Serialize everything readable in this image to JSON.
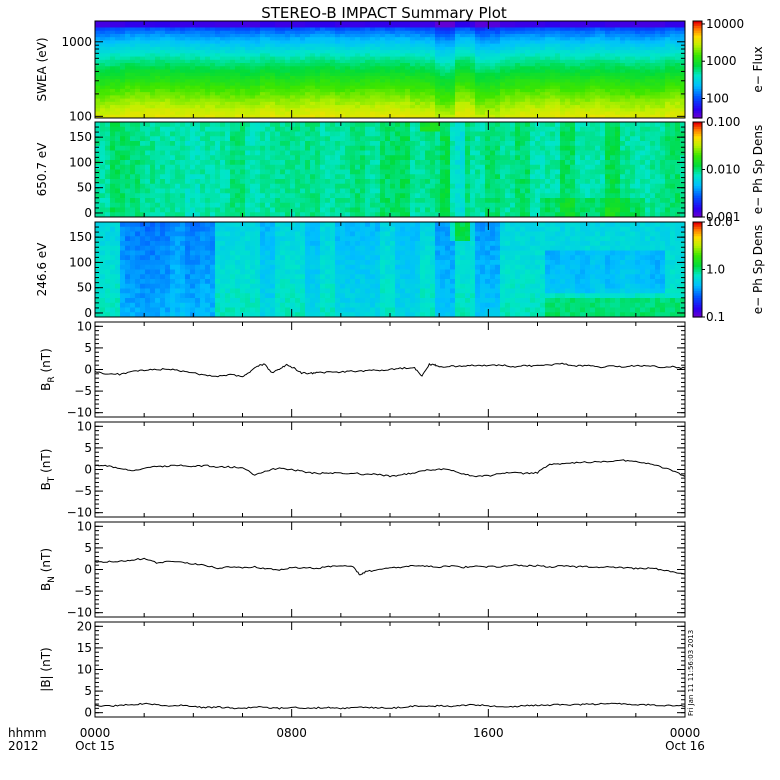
{
  "title": "STEREO-B IMPACT Summary Plot",
  "footer": {
    "axis_label_line1": "hhmm",
    "axis_label_line2": "2012",
    "timestamp": "Fri Jan 11 11:56:03 2013"
  },
  "colors": {
    "line": "#000000",
    "background": "#ffffff",
    "frame": "#000000"
  },
  "chart_data": [
    {
      "type": "heatmap",
      "name": "swea",
      "ylabel": "SWEA (eV)",
      "yscale": "log",
      "ylim": [
        95,
        1900
      ],
      "yticks": [
        {
          "v": 100,
          "label": "100"
        },
        {
          "v": 1000,
          "label": "1000"
        }
      ],
      "colorbar": {
        "label": "e− Flux",
        "scale": "log",
        "range": [
          30,
          12000
        ],
        "ticks": [
          {
            "v": 100,
            "label": "100"
          },
          {
            "v": 1000,
            "label": "1000"
          },
          {
            "v": 10000,
            "label": "10000"
          }
        ]
      }
    },
    {
      "type": "heatmap",
      "name": "pad650",
      "ylabel": "650.7 eV",
      "yscale": "linear",
      "ylim": [
        -8,
        180
      ],
      "yticks": [
        {
          "v": 0,
          "label": "0"
        },
        {
          "v": 50,
          "label": "50"
        },
        {
          "v": 100,
          "label": "100"
        },
        {
          "v": 150,
          "label": "150"
        }
      ],
      "colorbar": {
        "label": "e− Ph Sp Dens",
        "scale": "log",
        "range": [
          0.001,
          0.1
        ],
        "ticks": [
          {
            "v": 0.001,
            "label": "0.001"
          },
          {
            "v": 0.01,
            "label": "0.010"
          },
          {
            "v": 0.1,
            "label": "0.100"
          }
        ]
      }
    },
    {
      "type": "heatmap",
      "name": "pad246",
      "ylabel": "246.6 eV",
      "yscale": "linear",
      "ylim": [
        -8,
        180
      ],
      "yticks": [
        {
          "v": 0,
          "label": "0"
        },
        {
          "v": 50,
          "label": "50"
        },
        {
          "v": 100,
          "label": "100"
        },
        {
          "v": 150,
          "label": "150"
        }
      ],
      "colorbar": {
        "label": "e− Ph Sp Dens",
        "scale": "log",
        "range": [
          0.1,
          10
        ],
        "ticks": [
          {
            "v": 0.1,
            "label": "0.1"
          },
          {
            "v": 1,
            "label": "1.0"
          },
          {
            "v": 10,
            "label": "10.0"
          }
        ]
      }
    },
    {
      "type": "line",
      "name": "br",
      "ylabel_main": "B",
      "ylabel_sub": "R",
      "ylabel_unit": " (nT)",
      "ylim": [
        -11,
        11
      ],
      "yticks": [
        {
          "v": -10,
          "label": "−10"
        },
        {
          "v": -5,
          "label": "−5"
        },
        {
          "v": 0,
          "label": "0"
        },
        {
          "v": 5,
          "label": "5"
        },
        {
          "v": 10,
          "label": "10"
        }
      ],
      "x": [
        0,
        0.5,
        1,
        1.5,
        2,
        2.5,
        3,
        3.5,
        4,
        4.5,
        5,
        5.5,
        6,
        6.3,
        6.6,
        6.9,
        7.2,
        7.5,
        7.8,
        8.1,
        8.4,
        8.7,
        9,
        9.5,
        10,
        10.5,
        11,
        11.5,
        12,
        12.5,
        13,
        13.3,
        13.6,
        13.8,
        14,
        14.5,
        15,
        15.5,
        16,
        16.5,
        17,
        17.5,
        18,
        18.5,
        19,
        19.5,
        20,
        20.5,
        21,
        21.5,
        22,
        22.5,
        23,
        23.5,
        24
      ],
      "y": [
        -0.5,
        -1.0,
        -1.1,
        -0.5,
        -0.2,
        0.0,
        0.1,
        -0.4,
        -0.8,
        -1.4,
        -1.5,
        -1.2,
        -1.6,
        -0.6,
        0.8,
        1.2,
        -0.8,
        0.1,
        1.1,
        0.3,
        -0.8,
        -0.9,
        -0.8,
        -0.6,
        -0.6,
        -0.4,
        -0.3,
        -0.2,
        0.0,
        0.3,
        0.4,
        -1.5,
        1.2,
        1.1,
        0.6,
        0.8,
        0.7,
        1.0,
        0.9,
        1.1,
        0.6,
        0.9,
        0.8,
        1.0,
        1.4,
        0.8,
        1.0,
        0.5,
        0.9,
        0.6,
        0.9,
        0.9,
        0.5,
        0.6,
        0.3
      ]
    },
    {
      "type": "line",
      "name": "bt",
      "ylabel_main": "B",
      "ylabel_sub": "T",
      "ylabel_unit": " (nT)",
      "ylim": [
        -11,
        11
      ],
      "yticks": [
        {
          "v": -10,
          "label": "−10"
        },
        {
          "v": -5,
          "label": "−5"
        },
        {
          "v": 0,
          "label": "0"
        },
        {
          "v": 5,
          "label": "5"
        },
        {
          "v": 10,
          "label": "10"
        }
      ],
      "x": [
        0,
        0.5,
        1,
        1.5,
        2,
        2.5,
        3,
        3.5,
        4,
        4.5,
        5,
        5.5,
        6,
        6.5,
        7,
        7.5,
        8,
        8.5,
        9,
        9.5,
        10,
        10.5,
        11,
        11.5,
        12,
        12.5,
        13,
        13.5,
        14,
        14.5,
        15,
        15.5,
        16,
        16.5,
        17,
        17.5,
        18,
        18.5,
        19,
        19.5,
        20,
        20.5,
        21,
        21.5,
        22,
        22.5,
        23,
        23.5,
        24
      ],
      "y": [
        1.0,
        0.9,
        0.1,
        -0.2,
        0.3,
        0.7,
        0.8,
        0.9,
        0.7,
        0.9,
        0.6,
        0.6,
        0.3,
        -1.2,
        -0.2,
        0.3,
        0.0,
        -0.5,
        -0.9,
        -0.8,
        -0.9,
        -0.8,
        -1.2,
        -1.1,
        -1.6,
        -1.2,
        -0.8,
        -0.2,
        0.1,
        -0.1,
        -1.1,
        -1.6,
        -1.5,
        -0.8,
        -0.8,
        -0.9,
        -0.7,
        1.2,
        1.4,
        1.5,
        1.7,
        1.8,
        2.0,
        2.1,
        1.8,
        1.5,
        0.6,
        -0.3,
        -1.6
      ]
    },
    {
      "type": "line",
      "name": "bn",
      "ylabel_main": "B",
      "ylabel_sub": "N",
      "ylabel_unit": " (nT)",
      "ylim": [
        -11,
        11
      ],
      "yticks": [
        {
          "v": -10,
          "label": "−10"
        },
        {
          "v": -5,
          "label": "−5"
        },
        {
          "v": 0,
          "label": "0"
        },
        {
          "v": 5,
          "label": "5"
        },
        {
          "v": 10,
          "label": "10"
        }
      ],
      "x": [
        0,
        0.5,
        1,
        1.5,
        2,
        2.5,
        3,
        3.5,
        4,
        4.5,
        5,
        5.5,
        6,
        6.5,
        7,
        7.5,
        8,
        8.5,
        9,
        9.5,
        10,
        10.5,
        10.8,
        11,
        11.5,
        12,
        12.5,
        13,
        13.5,
        14,
        14.5,
        15,
        15.5,
        16,
        16.5,
        17,
        17.5,
        18,
        18.5,
        19,
        19.5,
        20,
        20.5,
        21,
        21.5,
        22,
        22.5,
        23,
        23.5,
        24
      ],
      "y": [
        1.8,
        1.8,
        1.9,
        2.2,
        2.5,
        1.6,
        1.8,
        1.6,
        1.3,
        0.9,
        0.3,
        0.6,
        0.4,
        0.6,
        0.1,
        0.0,
        0.4,
        0.4,
        0.3,
        0.6,
        0.8,
        0.6,
        -1.4,
        -0.5,
        -0.1,
        0.3,
        0.6,
        0.9,
        0.7,
        0.6,
        0.8,
        0.5,
        0.8,
        0.6,
        0.7,
        1.0,
        0.8,
        0.9,
        0.6,
        0.8,
        0.6,
        0.7,
        0.5,
        0.6,
        0.4,
        0.2,
        0.3,
        0.0,
        -0.6,
        -1.1
      ]
    },
    {
      "type": "line",
      "name": "bmag",
      "ylabel_main": "|B|",
      "ylabel_sub": "",
      "ylabel_unit": " (nT)",
      "ylim": [
        -1,
        21
      ],
      "yticks": [
        {
          "v": 0,
          "label": "0"
        },
        {
          "v": 5,
          "label": "5"
        },
        {
          "v": 10,
          "label": "10"
        },
        {
          "v": 15,
          "label": "15"
        },
        {
          "v": 20,
          "label": "20"
        }
      ],
      "x": [
        0,
        0.5,
        1,
        1.5,
        2,
        2.5,
        3,
        3.5,
        4,
        4.5,
        5,
        5.5,
        6,
        6.5,
        7,
        7.5,
        8,
        8.5,
        9,
        9.5,
        10,
        10.5,
        11,
        11.5,
        12,
        12.5,
        13,
        13.5,
        14,
        14.5,
        15,
        15.5,
        16,
        16.5,
        17,
        17.5,
        18,
        18.5,
        19,
        19.5,
        20,
        20.5,
        21,
        21.5,
        22,
        22.5,
        23,
        23.5,
        24
      ],
      "y": [
        1.6,
        1.5,
        1.6,
        1.9,
        2.1,
        1.9,
        1.6,
        1.7,
        1.4,
        1.2,
        1.3,
        1.1,
        1.0,
        1.3,
        1.2,
        1.0,
        1.2,
        1.1,
        1.1,
        1.2,
        1.0,
        1.1,
        1.3,
        1.1,
        1.0,
        1.3,
        1.5,
        1.4,
        1.6,
        1.5,
        1.7,
        1.8,
        1.6,
        1.5,
        1.4,
        1.6,
        1.7,
        1.7,
        1.9,
        1.8,
        2.0,
        2.0,
        2.1,
        2.0,
        1.9,
        1.8,
        1.6,
        1.7,
        1.5
      ]
    }
  ],
  "xaxis": {
    "range": [
      0,
      24
    ],
    "ticks": [
      {
        "v": 0,
        "label": "0000",
        "date": "Oct 15"
      },
      {
        "v": 8,
        "label": "0800",
        "date": ""
      },
      {
        "v": 16,
        "label": "1600",
        "date": ""
      },
      {
        "v": 24,
        "label": "0000",
        "date": "Oct 16"
      }
    ]
  }
}
